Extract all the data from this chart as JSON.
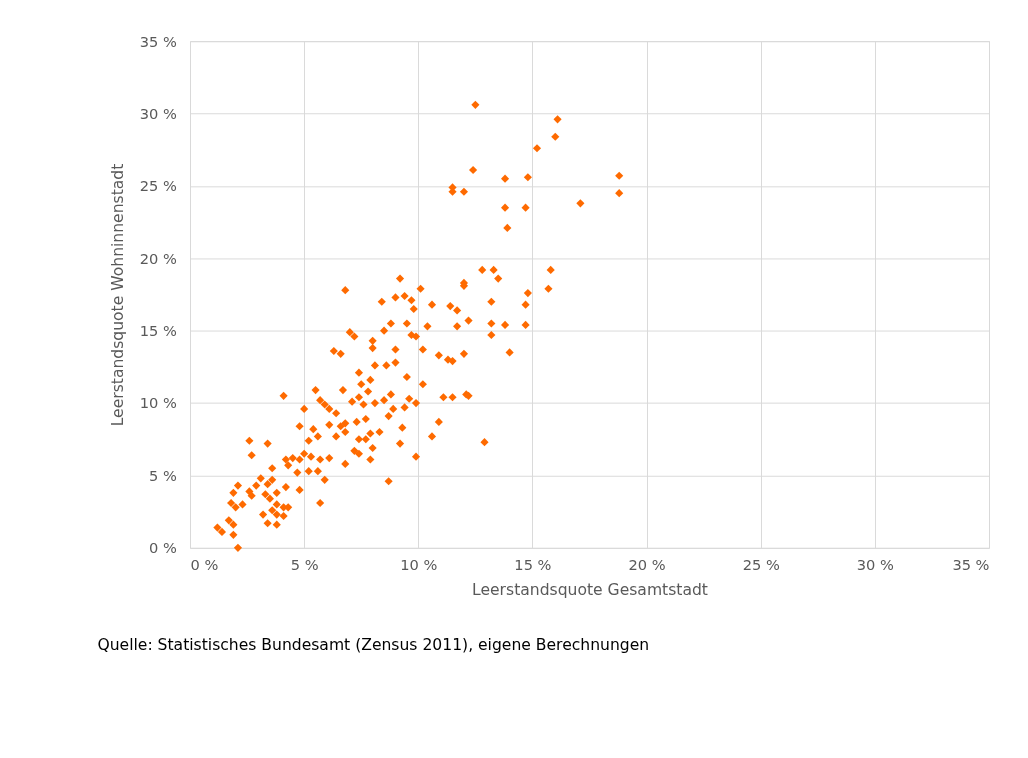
{
  "chart_data": {
    "type": "scatter",
    "xlabel": "Leerstandsquote Gesamtstadt",
    "ylabel": "Leerstandsquote Wohninnenstadt",
    "x": [
      12.5,
      16.1,
      16.0,
      15.2,
      12.4,
      13.8,
      14.8,
      18.8,
      18.8,
      11.5,
      11.5,
      12.0,
      17.1,
      13.8,
      14.7,
      13.9,
      15.8,
      12.8,
      13.3,
      13.5,
      12.0,
      12.0,
      15.7,
      14.8,
      9.2,
      10.1,
      6.8,
      13.2,
      14.7,
      10.6,
      11.4,
      11.7,
      9.7,
      9.4,
      9.8,
      9.0,
      8.4,
      13.2,
      13.8,
      14.7,
      12.2,
      11.7,
      10.4,
      13.2,
      9.5,
      9.7,
      9.9,
      8.5,
      8.8,
      8.0,
      8.0,
      7.2,
      7.0,
      6.3,
      6.6,
      14.0,
      12.0,
      10.9,
      11.3,
      11.5,
      10.2,
      9.0,
      9.0,
      8.6,
      8.1,
      7.4,
      6.7,
      7.5,
      7.9,
      7.8,
      9.5,
      10.2,
      11.5,
      12.1,
      12.2,
      11.1,
      9.6,
      9.9,
      9.4,
      8.9,
      8.8,
      8.5,
      7.6,
      8.1,
      7.4,
      7.1,
      5.7,
      5.9,
      6.1,
      5.5,
      4.1,
      5.0,
      6.4,
      6.1,
      6.8,
      6.6,
      7.3,
      8.7,
      7.7,
      9.3,
      10.9,
      10.6,
      12.9,
      9.9,
      8.7,
      9.2,
      8.3,
      7.9,
      7.7,
      7.4,
      7.2,
      7.4,
      7.9,
      8.0,
      6.8,
      6.4,
      5.6,
      5.4,
      4.8,
      5.2,
      5.0,
      4.8,
      5.3,
      5.7,
      6.1,
      6.8,
      5.6,
      5.9,
      5.7,
      4.5,
      4.2,
      4.3,
      4.7,
      5.2,
      4.8,
      3.6,
      3.4,
      2.6,
      2.7,
      3.6,
      3.1,
      3.4,
      2.9,
      2.6,
      2.7,
      2.1,
      1.9,
      3.3,
      3.8,
      3.5,
      3.8,
      4.1,
      3.6,
      3.8,
      4.1,
      4.2,
      4.3,
      1.8,
      2.0,
      2.3,
      3.2,
      3.4,
      3.8,
      1.7,
      1.9,
      1.2,
      1.4,
      1.9,
      2.1
    ],
    "values": [
      30.6,
      29.6,
      28.4,
      27.6,
      26.1,
      25.5,
      25.6,
      25.7,
      24.5,
      24.9,
      24.6,
      24.6,
      23.8,
      23.5,
      23.5,
      22.1,
      19.2,
      19.2,
      19.2,
      18.6,
      18.3,
      18.1,
      17.9,
      17.6,
      18.6,
      17.9,
      17.8,
      17.0,
      16.8,
      16.8,
      16.7,
      16.4,
      17.1,
      17.4,
      16.5,
      17.3,
      17.0,
      15.5,
      15.4,
      15.4,
      15.7,
      15.3,
      15.3,
      14.7,
      15.5,
      14.7,
      14.6,
      15.0,
      15.5,
      14.3,
      13.8,
      14.6,
      14.9,
      13.6,
      13.4,
      13.5,
      13.4,
      13.3,
      13.0,
      12.9,
      13.7,
      13.7,
      12.8,
      12.6,
      12.6,
      12.1,
      10.9,
      11.3,
      11.6,
      10.8,
      11.8,
      11.3,
      10.4,
      10.6,
      10.5,
      10.4,
      10.3,
      10.0,
      9.7,
      9.6,
      10.6,
      10.2,
      9.9,
      10.0,
      10.4,
      10.1,
      10.2,
      9.9,
      9.6,
      10.9,
      10.5,
      9.6,
      9.3,
      8.5,
      8.6,
      8.4,
      8.7,
      9.1,
      8.9,
      8.3,
      8.7,
      7.7,
      7.3,
      6.3,
      4.6,
      7.2,
      8.0,
      7.9,
      7.5,
      7.5,
      6.7,
      6.5,
      6.1,
      6.9,
      8.0,
      7.7,
      7.7,
      8.2,
      8.4,
      7.4,
      6.5,
      6.1,
      6.3,
      6.1,
      6.2,
      5.8,
      5.3,
      4.7,
      3.1,
      6.2,
      6.1,
      5.7,
      5.2,
      5.3,
      4.0,
      5.5,
      7.2,
      7.4,
      6.4,
      4.7,
      4.8,
      4.4,
      4.3,
      3.9,
      3.6,
      4.3,
      3.8,
      3.7,
      3.8,
      3.4,
      3.0,
      2.8,
      2.6,
      2.3,
      2.2,
      4.2,
      2.8,
      3.1,
      2.8,
      3.0,
      2.3,
      1.7,
      1.6,
      1.9,
      1.6,
      1.4,
      1.1,
      0.9,
      0.0
    ],
    "color": "#fe6a00",
    "marker": "diamond",
    "grid": true,
    "xlim": [
      0,
      35
    ],
    "ylim": [
      0,
      35
    ],
    "xticks": [
      {
        "value": 0,
        "label": "0 %"
      },
      {
        "value": 5,
        "label": "5 %"
      },
      {
        "value": 10,
        "label": "10 %"
      },
      {
        "value": 15,
        "label": "15 %"
      },
      {
        "value": 20,
        "label": "20 %"
      },
      {
        "value": 25,
        "label": "25 %"
      },
      {
        "value": 30,
        "label": "30 %"
      },
      {
        "value": 35,
        "label": "35 %"
      }
    ],
    "yticks": [
      {
        "value": 0,
        "label": "0 %"
      },
      {
        "value": 5,
        "label": "5 %"
      },
      {
        "value": 10,
        "label": "10 %"
      },
      {
        "value": 15,
        "label": "15 %"
      },
      {
        "value": 20,
        "label": "20 %"
      },
      {
        "value": 25,
        "label": "25 %"
      },
      {
        "value": 30,
        "label": "30 %"
      },
      {
        "value": 35,
        "label": "35 %"
      }
    ],
    "annotations": [
      "Quelle: Statistisches Bundesamt (Zensus 2011), eigene Berechnungen"
    ]
  }
}
